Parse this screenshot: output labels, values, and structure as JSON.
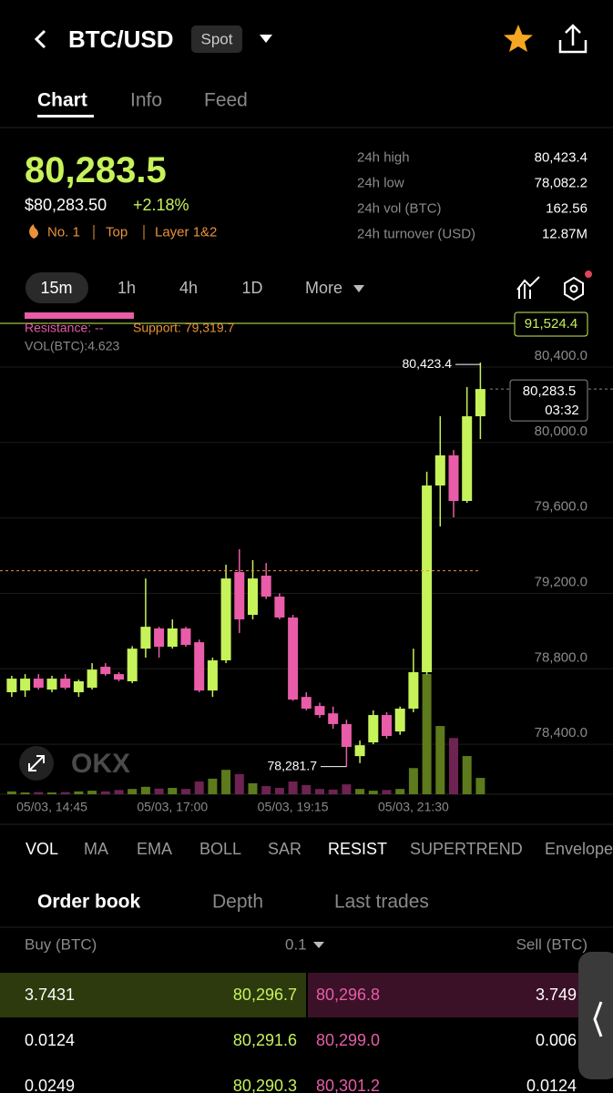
{
  "header": {
    "title": "BTC/USD",
    "badge": "Spot"
  },
  "tabs": [
    "Chart",
    "Info",
    "Feed"
  ],
  "price": {
    "last": "80,283.5",
    "usd": "$80,283.50",
    "change": "+2.18%",
    "tags": [
      "No. 1",
      "Top",
      "Layer 1&2"
    ]
  },
  "stats": [
    {
      "label": "24h high",
      "value": "80,423.4"
    },
    {
      "label": "24h low",
      "value": "78,082.2"
    },
    {
      "label": "24h vol (BTC)",
      "value": "162.56"
    },
    {
      "label": "24h turnover (USD)",
      "value": "12.87M"
    }
  ],
  "intervals": [
    "15m",
    "1h",
    "4h",
    "1D",
    "More"
  ],
  "chart_data": {
    "type": "candlestick",
    "categories": [
      null,
      null,
      null,
      "05/03, 14:45",
      null,
      null,
      null,
      null,
      null,
      null,
      null,
      null,
      "05/03, 17:00",
      null,
      null,
      null,
      null,
      null,
      null,
      null,
      null,
      "05/03, 19:15",
      null,
      null,
      null,
      null,
      null,
      null,
      null,
      null,
      "05/03, 21:30",
      null,
      null,
      null,
      null,
      null
    ],
    "open": [
      78676,
      78685,
      78748,
      78690,
      78748,
      78676,
      78700,
      78811,
      78772,
      78734,
      78907,
      79014,
      78917,
      79014,
      78941,
      78685,
      78845,
      79313,
      79086,
      79294,
      79183,
      79072,
      78651,
      78603,
      78564,
      78507,
      78337,
      78410,
      78555,
      78468,
      78589,
      78782,
      79772,
      79932,
      79690,
      80139
    ],
    "high": [
      78763,
      78772,
      78772,
      78763,
      78772,
      78743,
      78830,
      78830,
      78782,
      78920,
      79279,
      79023,
      79062,
      79023,
      78955,
      78859,
      79352,
      79434,
      79376,
      79361,
      79200,
      79086,
      78676,
      78620,
      78600,
      78530,
      78420,
      78580,
      78570,
      78600,
      78907,
      79845,
      80139,
      79960,
      80294,
      80423.4
    ],
    "low": [
      78651,
      78651,
      78690,
      78676,
      78690,
      78651,
      78690,
      78763,
      78734,
      78724,
      78859,
      78859,
      78907,
      78917,
      78676,
      78651,
      78830,
      78990,
      79062,
      79170,
      79062,
      78630,
      78580,
      78540,
      78482,
      78281.7,
      78300,
      78400,
      78430,
      78450,
      78570,
      78770,
      79555,
      79603,
      79680,
      80018
    ],
    "close": [
      78748,
      78748,
      78700,
      78748,
      78700,
      78734,
      78796,
      78772,
      78743,
      78907,
      79023,
      78917,
      79014,
      78927,
      78685,
      78845,
      79279,
      79062,
      79279,
      79183,
      79072,
      78637,
      78589,
      78555,
      78507,
      78386,
      78395,
      78555,
      78444,
      78589,
      78782,
      79772,
      79932,
      79690,
      80139,
      80283.5
    ],
    "volume": [
      0.8,
      0.5,
      0.6,
      0.5,
      0.6,
      0.8,
      1.0,
      0.8,
      1.2,
      1.5,
      2.1,
      1.6,
      1.8,
      1.5,
      3.6,
      4.4,
      6.9,
      5.7,
      3.1,
      2.3,
      1.8,
      3.6,
      2.6,
      1.5,
      1.3,
      2.8,
      1.5,
      1.0,
      1.2,
      1.5,
      7.4,
      34.0,
      19.3,
      15.9,
      10.8,
      4.623
    ],
    "ylim": [
      78135,
      80680
    ],
    "yticks": [
      {
        "value": 78400,
        "label": "78,400.0"
      },
      {
        "value": 78800,
        "label": "78,800.0"
      },
      {
        "value": 79200,
        "label": "79,200.0"
      },
      {
        "value": 79600,
        "label": "79,600.0"
      },
      {
        "value": 80000,
        "label": "80,000.0"
      },
      {
        "value": 80400,
        "label": "80,400.0"
      }
    ],
    "grid": true,
    "up_color": "#c6f25a",
    "down_color": "#e85ca8",
    "volume_up_color": "#5d7a1c",
    "volume_down_color": "#6e2352",
    "support": 79319.7,
    "support_label": "Support: 79,319.7",
    "resistance_label": "Resistance: --",
    "volume_label": "VOL(BTC):4.623",
    "level_label": "91,524.4",
    "high_label": "80,423.4",
    "low_label": "78,281.7",
    "last_label": "80,283.5",
    "countdown": "03:32"
  },
  "watermark": "OKX",
  "indicators": [
    "VOL",
    "MA",
    "EMA",
    "BOLL",
    "SAR",
    "RESIST",
    "SUPERTREND",
    "Envelope"
  ],
  "order_book": {
    "tabs": [
      "Order book",
      "Depth",
      "Last trades"
    ],
    "columns": [
      "Buy (BTC)",
      "0.1",
      "Sell (BTC)"
    ],
    "rows": [
      [
        "3.7431",
        "80,296.7",
        "80,296.8",
        "3.749"
      ],
      [
        "0.0124",
        "80,291.6",
        "80,299.0",
        "0.006"
      ],
      [
        "0.0249",
        "80,290.3",
        "80,301.2",
        "0.0124"
      ]
    ]
  }
}
